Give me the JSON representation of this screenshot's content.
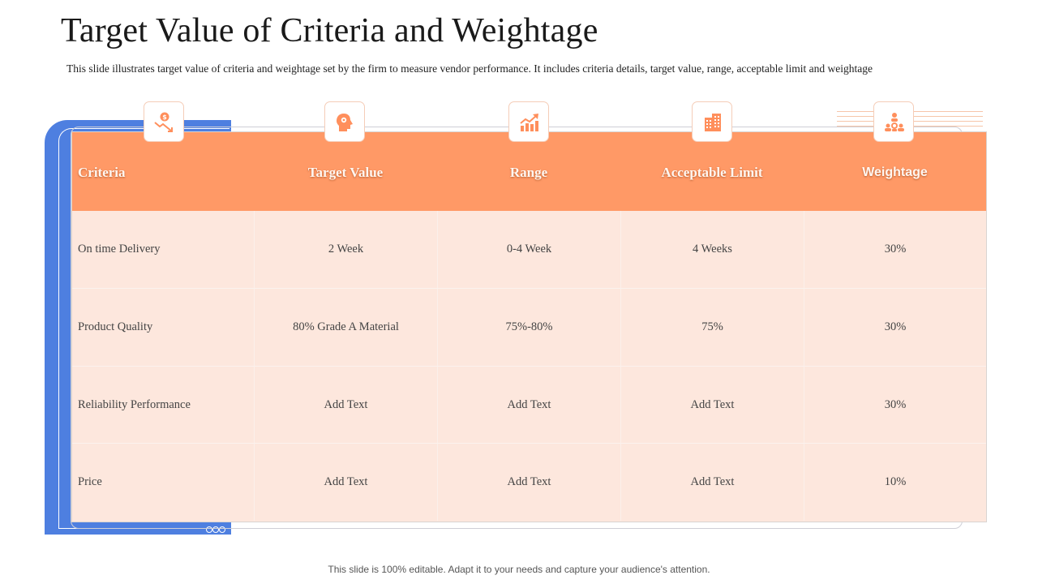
{
  "title": "Target Value of Criteria and Weightage",
  "subtitle": "This slide illustrates target value of criteria and weightage set by the firm to measure vendor performance. It includes criteria details, target value, range, acceptable limit and weightage",
  "table": {
    "headers": [
      "Criteria",
      "Target Value",
      "Range",
      "Acceptable Limit",
      "Weightage"
    ],
    "header_icons": [
      "dollar-decline-icon",
      "head-mind-icon",
      "growth-chart-icon",
      "office-building-icon",
      "team-hierarchy-icon"
    ],
    "rows": [
      [
        "On time  Delivery",
        "2 Week",
        "0-4 Week",
        "4 Weeks",
        "30%"
      ],
      [
        "Product  Quality",
        "80% Grade A Material",
        "75%-80%",
        "75%",
        "30%"
      ],
      [
        "Reliability  Performance",
        "Add Text",
        "Add Text",
        "Add Text",
        "30%"
      ],
      [
        "Price",
        "Add Text",
        "Add Text",
        "Add Text",
        "10%"
      ]
    ]
  },
  "colors": {
    "accent_orange": "#ff9966",
    "row_fill": "#fde7dd",
    "accent_blue": "#4e7fe0"
  },
  "footer": "This slide is 100% editable. Adapt it to your needs and capture your audience's attention."
}
